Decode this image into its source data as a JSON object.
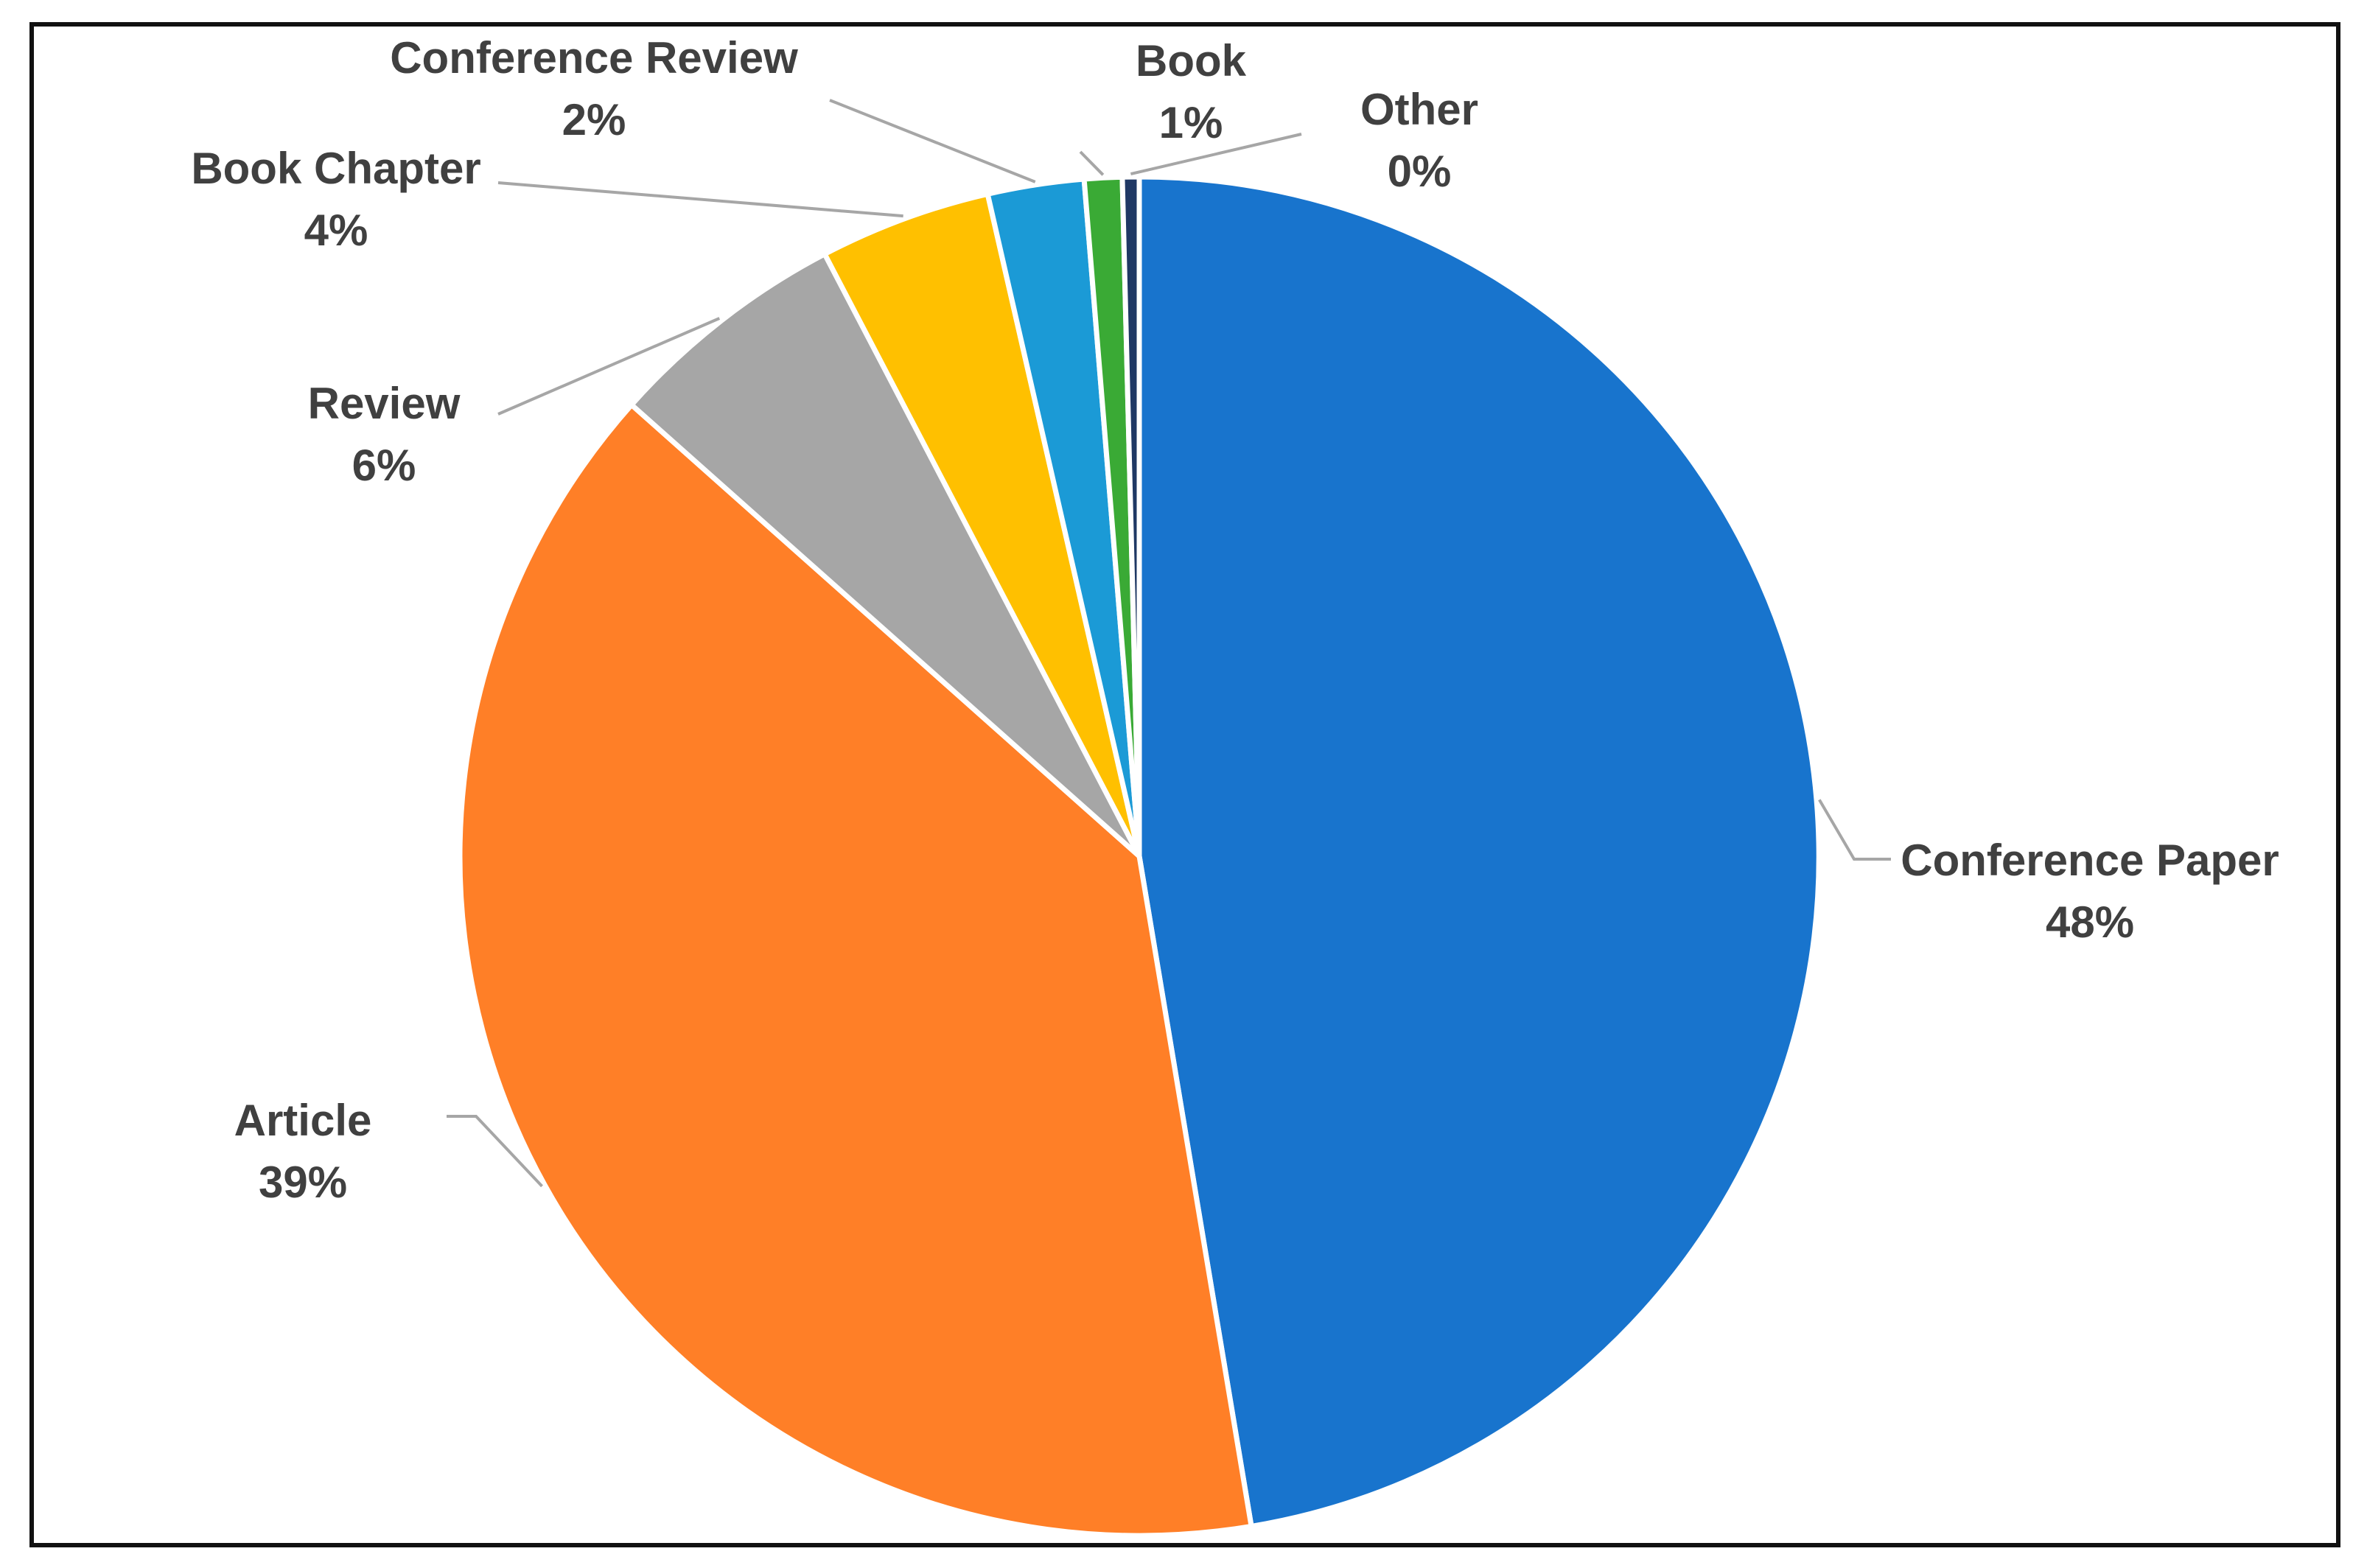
{
  "chart_data": {
    "type": "pie",
    "title": "",
    "categories": [
      "Conference Paper",
      "Article",
      "Review",
      "Book Chapter",
      "Conference Review",
      "Book",
      "Other"
    ],
    "values": [
      47.6,
      39.4,
      5.8,
      4.1,
      2.3,
      0.9,
      0.4
    ],
    "labels": [
      "48%",
      "39%",
      "6%",
      "4%",
      "2%",
      "1%",
      "0%"
    ],
    "colors": [
      "#1874cd",
      "#ff7f27",
      "#a6a6a6",
      "#ffc000",
      "#1b9ad6",
      "#3aaa35",
      "#1f3864"
    ],
    "start_angle": "12 o'clock",
    "direction": "clockwise",
    "data_labels": "outside with leader lines"
  }
}
